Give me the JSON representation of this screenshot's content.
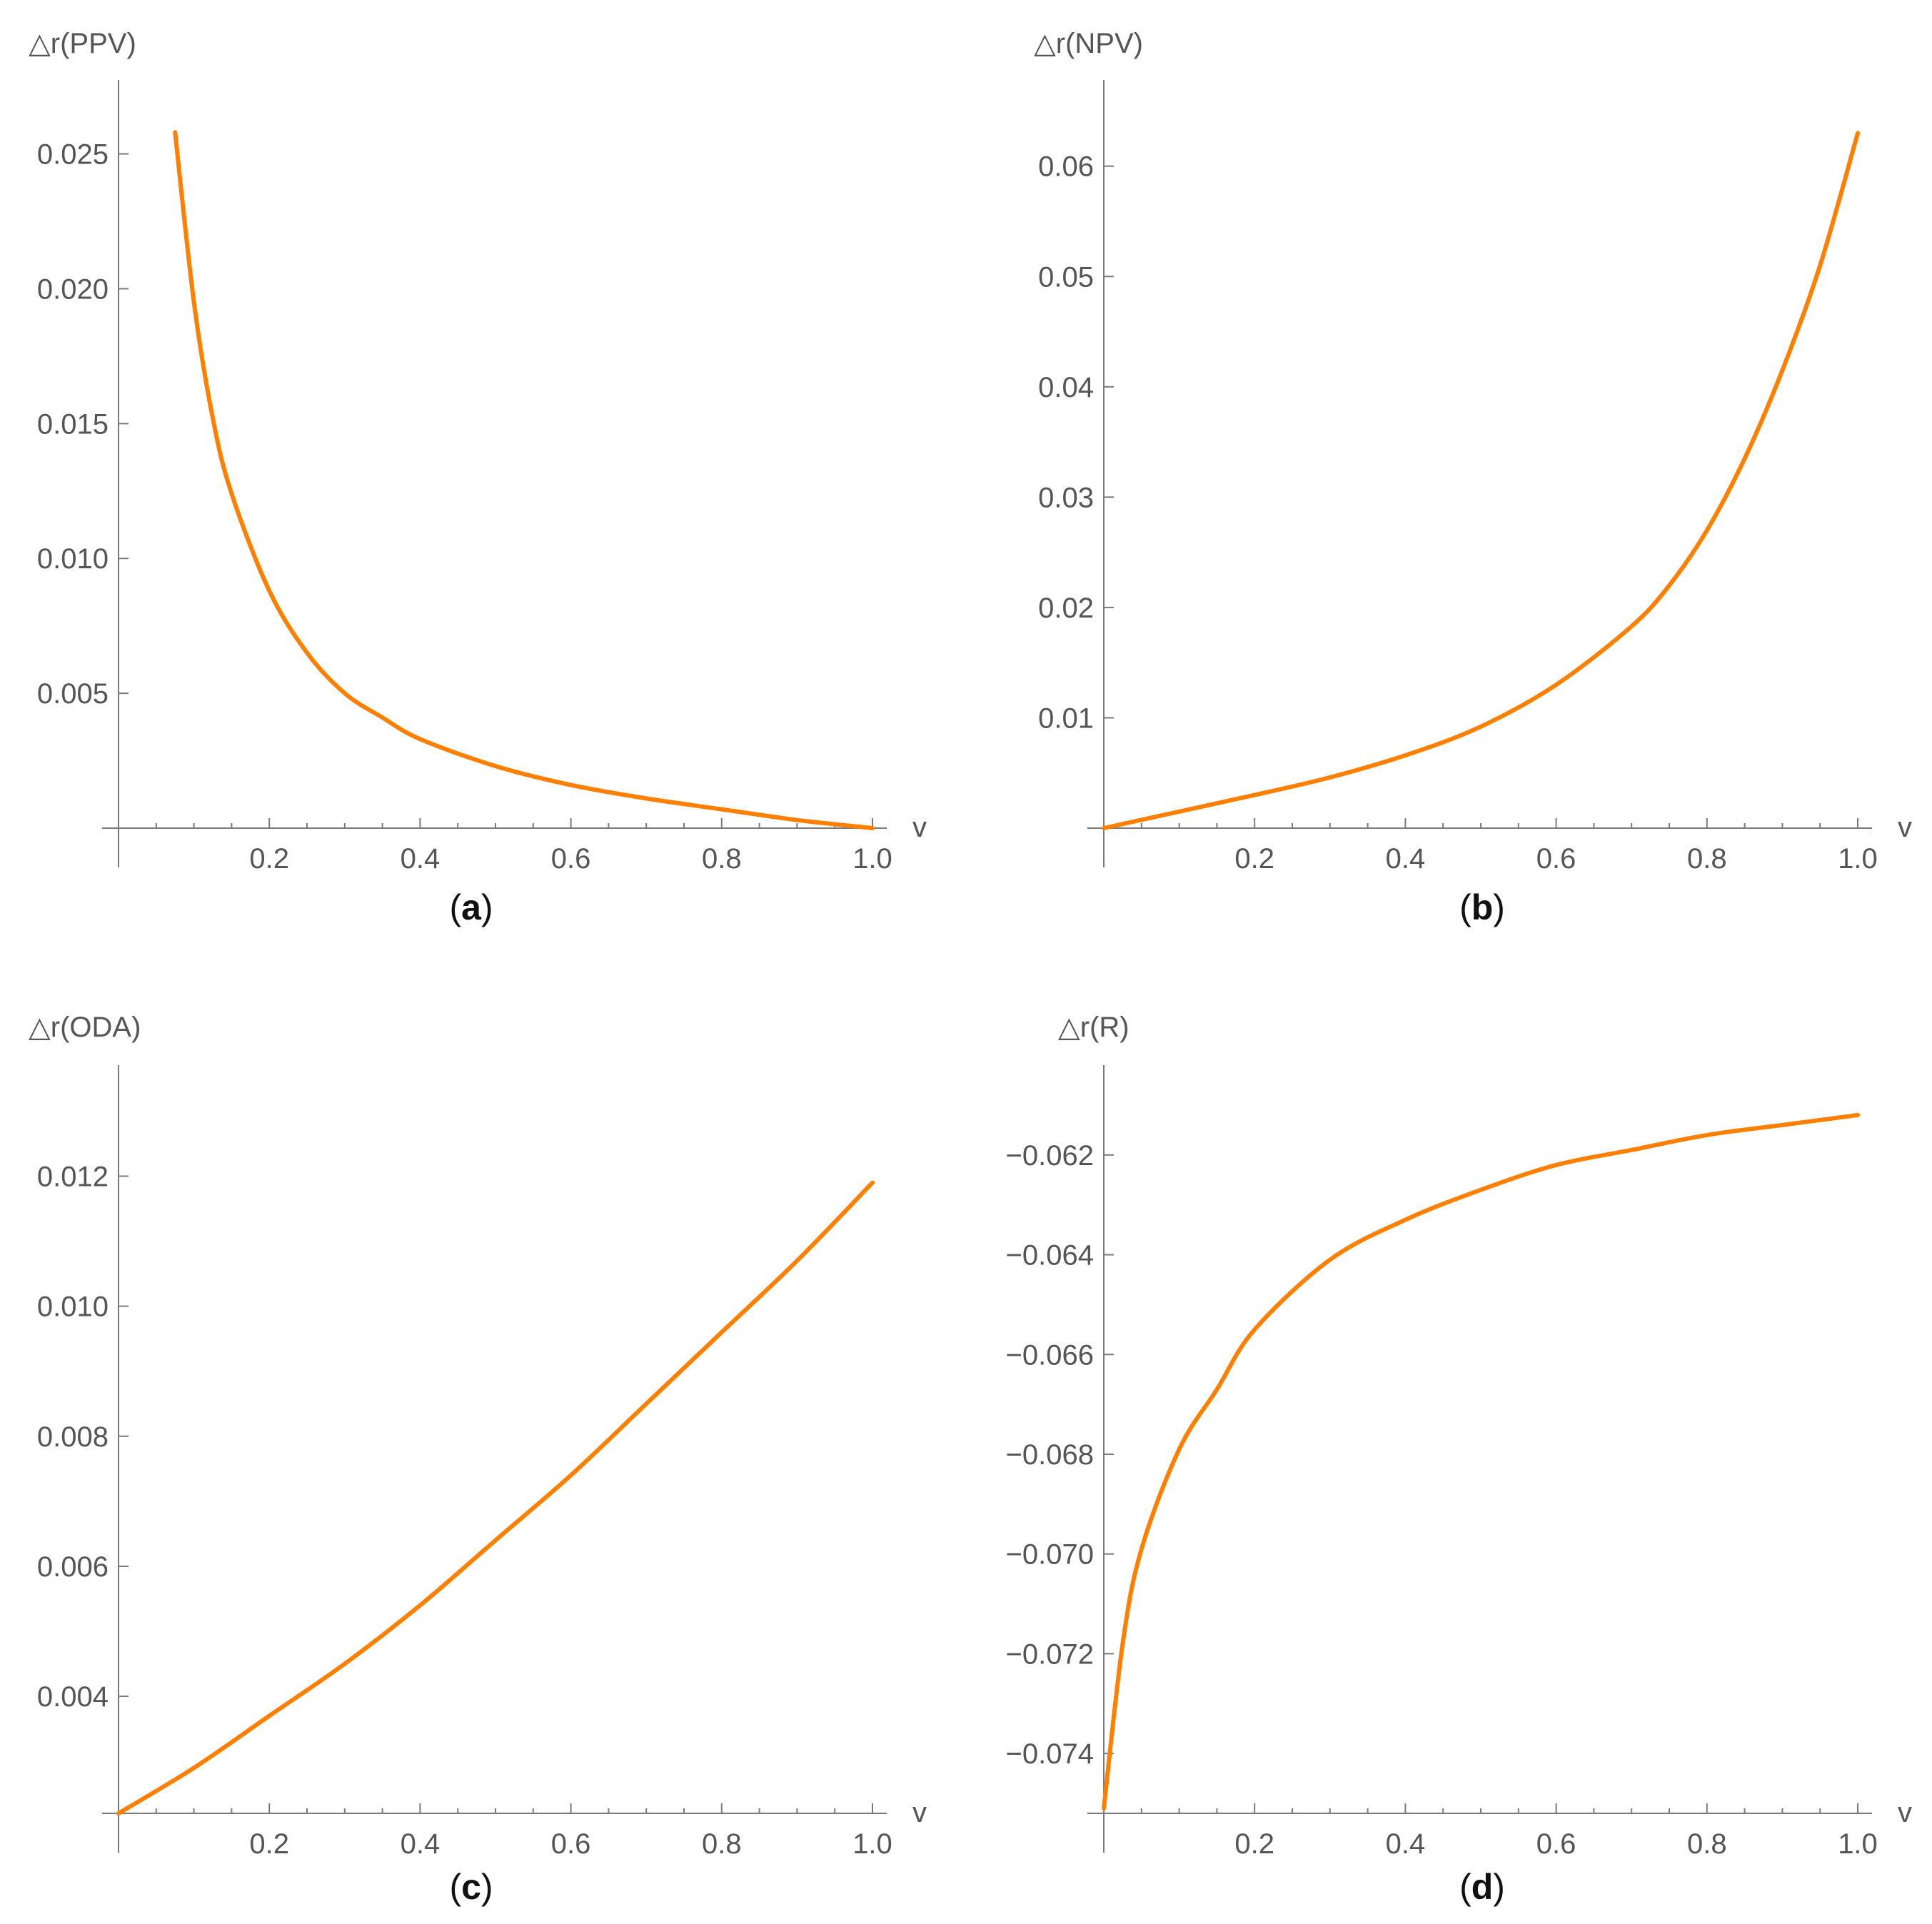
{
  "colors": {
    "series": "#ff8000",
    "axis": "#7a7a7a",
    "text": "#555555"
  },
  "chart_data": [
    {
      "panel": "a",
      "type": "line",
      "ylabel": "△r(PPV)",
      "xlabel": "v",
      "xlim": [
        0,
        1.0
      ],
      "ylim": [
        0,
        0.027
      ],
      "x_ticks": [
        0.2,
        0.4,
        0.6,
        0.8,
        1.0
      ],
      "x_tick_labels": [
        "0.2",
        "0.4",
        "0.6",
        "0.8",
        "1.0"
      ],
      "y_ticks": [
        0.005,
        0.01,
        0.015,
        0.02,
        0.025
      ],
      "y_tick_labels": [
        "0.005",
        "0.010",
        "0.015",
        "0.020",
        "0.025"
      ],
      "series": [
        {
          "x": [
            0.075,
            0.1,
            0.125,
            0.15,
            0.2,
            0.25,
            0.3,
            0.35,
            0.4,
            0.5,
            0.6,
            0.7,
            0.8,
            0.9,
            1.0
          ],
          "y": [
            0.0258,
            0.0195,
            0.0152,
            0.0124,
            0.0088,
            0.0065,
            0.005,
            0.0041,
            0.0033,
            0.0023,
            0.0016,
            0.0011,
            0.0007,
            0.0003,
            0.0
          ]
        }
      ]
    },
    {
      "panel": "b",
      "type": "line",
      "ylabel": "△r(NPV)",
      "xlabel": "v",
      "xlim": [
        0,
        1.0
      ],
      "ylim": [
        0,
        0.066
      ],
      "x_ticks": [
        0.2,
        0.4,
        0.6,
        0.8,
        1.0
      ],
      "x_tick_labels": [
        "0.2",
        "0.4",
        "0.6",
        "0.8",
        "1.0"
      ],
      "y_ticks": [
        0.01,
        0.02,
        0.03,
        0.04,
        0.05,
        0.06
      ],
      "y_tick_labels": [
        "0.01",
        "0.02",
        "0.03",
        "0.04",
        "0.05",
        "0.06"
      ],
      "series": [
        {
          "x": [
            0.0,
            0.1,
            0.2,
            0.3,
            0.4,
            0.5,
            0.6,
            0.7,
            0.75,
            0.8,
            0.85,
            0.9,
            0.95,
            1.0
          ],
          "y": [
            0.0,
            0.0015,
            0.003,
            0.0046,
            0.0066,
            0.0092,
            0.013,
            0.0183,
            0.022,
            0.027,
            0.0335,
            0.0415,
            0.051,
            0.063
          ]
        }
      ]
    },
    {
      "panel": "c",
      "type": "line",
      "ylabel": "△r(ODA)",
      "xlabel": "v",
      "xlim": [
        0,
        1.0
      ],
      "ylim": [
        0.0022,
        0.0134
      ],
      "x_ticks": [
        0.2,
        0.4,
        0.6,
        0.8,
        1.0
      ],
      "x_tick_labels": [
        "0.2",
        "0.4",
        "0.6",
        "0.8",
        "1.0"
      ],
      "y_ticks": [
        0.004,
        0.006,
        0.008,
        0.01,
        0.012
      ],
      "y_tick_labels": [
        "0.004",
        "0.006",
        "0.008",
        "0.010",
        "0.012"
      ],
      "series": [
        {
          "x": [
            0.0,
            0.1,
            0.2,
            0.3,
            0.4,
            0.5,
            0.6,
            0.7,
            0.8,
            0.9,
            1.0
          ],
          "y": [
            0.0022,
            0.0029,
            0.0037,
            0.0045,
            0.0054,
            0.0064,
            0.0074,
            0.0085,
            0.0096,
            0.0107,
            0.0119
          ]
        }
      ]
    },
    {
      "panel": "d",
      "type": "line",
      "ylabel": "△r(R)",
      "xlabel": "v",
      "xlim": [
        0,
        1.0
      ],
      "ylim": [
        -0.0752,
        -0.0606
      ],
      "x_ticks": [
        0.2,
        0.4,
        0.6,
        0.8,
        1.0
      ],
      "x_tick_labels": [
        "0.2",
        "0.4",
        "0.6",
        "0.8",
        "1.0"
      ],
      "y_ticks": [
        -0.074,
        -0.072,
        -0.07,
        -0.068,
        -0.066,
        -0.064,
        -0.062
      ],
      "y_tick_labels": [
        "−0.074",
        "−0.072",
        "−0.070",
        "−0.068",
        "−0.066",
        "−0.064",
        "−0.062"
      ],
      "series": [
        {
          "x": [
            0.0,
            0.025,
            0.05,
            0.1,
            0.15,
            0.2,
            0.3,
            0.4,
            0.5,
            0.6,
            0.7,
            0.8,
            0.9,
            1.0
          ],
          "y": [
            -0.0751,
            -0.0718,
            -0.0699,
            -0.0679,
            -0.0667,
            -0.0655,
            -0.0641,
            -0.0633,
            -0.0627,
            -0.0622,
            -0.0619,
            -0.0616,
            -0.0614,
            -0.0612
          ]
        }
      ]
    }
  ]
}
